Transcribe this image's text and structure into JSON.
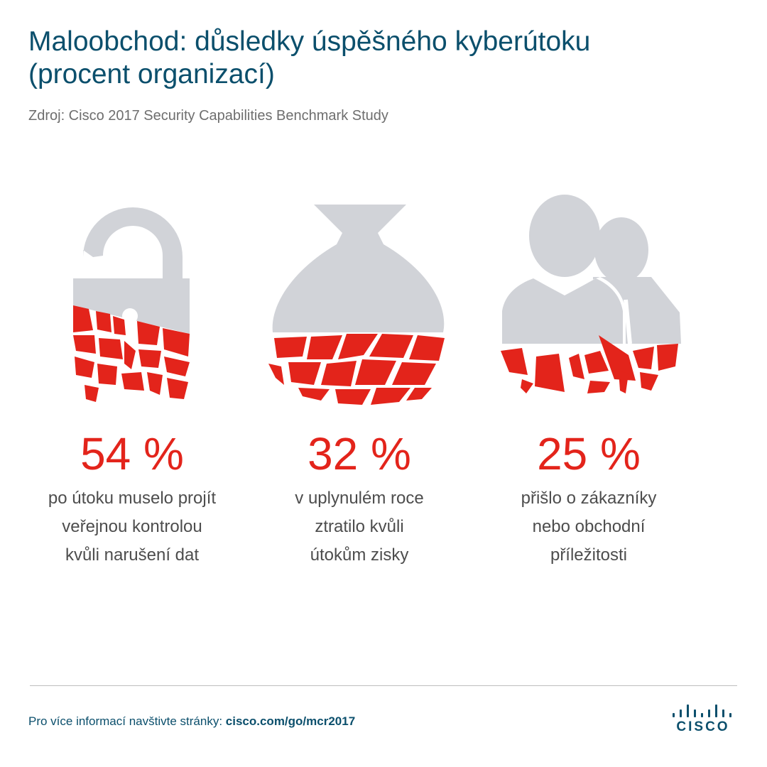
{
  "title": {
    "line1": "Maloobchod: důsledky úspěšného kyberútoku",
    "line2": "(procent organizací)"
  },
  "source": "Zdroj: Cisco 2017 Security Capabilities Benchmark Study",
  "stats": [
    {
      "icon": "broken-padlock-icon",
      "value": "54 %",
      "lines": [
        "po útoku muselo projít",
        "veřejnou kontrolou",
        "kvůli narušení dat"
      ]
    },
    {
      "icon": "broken-money-bag-icon",
      "value": "32 %",
      "lines": [
        "v uplynulém roce",
        "ztratilo kvůli",
        "útokům zisky"
      ]
    },
    {
      "icon": "broken-customers-icon",
      "value": "25 %",
      "lines": [
        "přišlo o zákazníky",
        "nebo obchodní",
        "příležitosti"
      ]
    }
  ],
  "footer": {
    "text": "Pro více informací navštivte stránky:",
    "link": "cisco.com/go/mcr2017"
  },
  "logo": {
    "name": "cisco-logo",
    "text": "CISCO"
  },
  "colors": {
    "title": "#0b4f6c",
    "accent": "#e3241b",
    "icon_gray": "#d1d3d8",
    "text": "#4d4d4d"
  }
}
